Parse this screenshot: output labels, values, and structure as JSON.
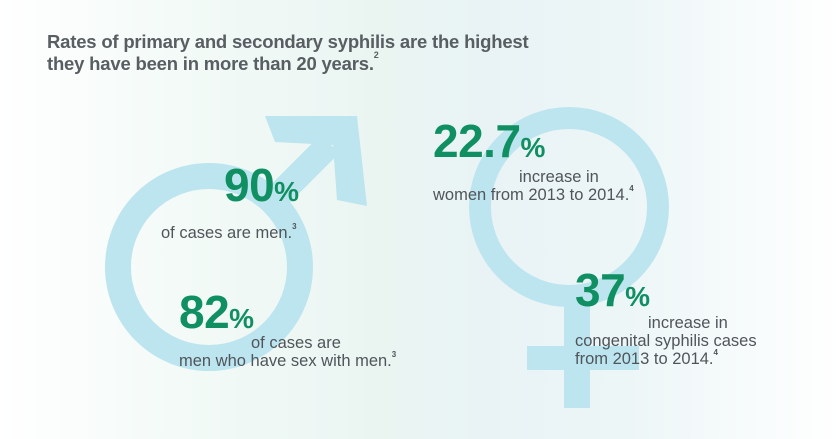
{
  "headline": {
    "line1": "Rates of primary and secondary syphilis are the highest",
    "line2": "they have been in more than 20 years.",
    "footnote": "2"
  },
  "symbols": {
    "color": "#bde5ef",
    "male_icon": "male-symbol-icon",
    "female_icon": "female-symbol-icon"
  },
  "stats": {
    "men_cases": {
      "value": "90",
      "unit": "%",
      "text": "of cases are men.",
      "footnote": "3"
    },
    "msm": {
      "value": "82",
      "unit": "%",
      "line1": "of cases are",
      "line2": "men who have sex with men.",
      "footnote": "3"
    },
    "women_increase": {
      "value": "22.7",
      "unit": "%",
      "line1": "increase in",
      "line2": "women from 2013 to 2014.",
      "footnote": "4"
    },
    "congenital_increase": {
      "value": "37",
      "unit": "%",
      "line1": "increase in",
      "line2": "congenital syphilis cases",
      "line3": "from 2013 to 2014.",
      "footnote": "4"
    }
  },
  "colors": {
    "stat_green": "#109062",
    "text_gray": "#4f555a",
    "symbol_blue": "#bde5ef"
  }
}
